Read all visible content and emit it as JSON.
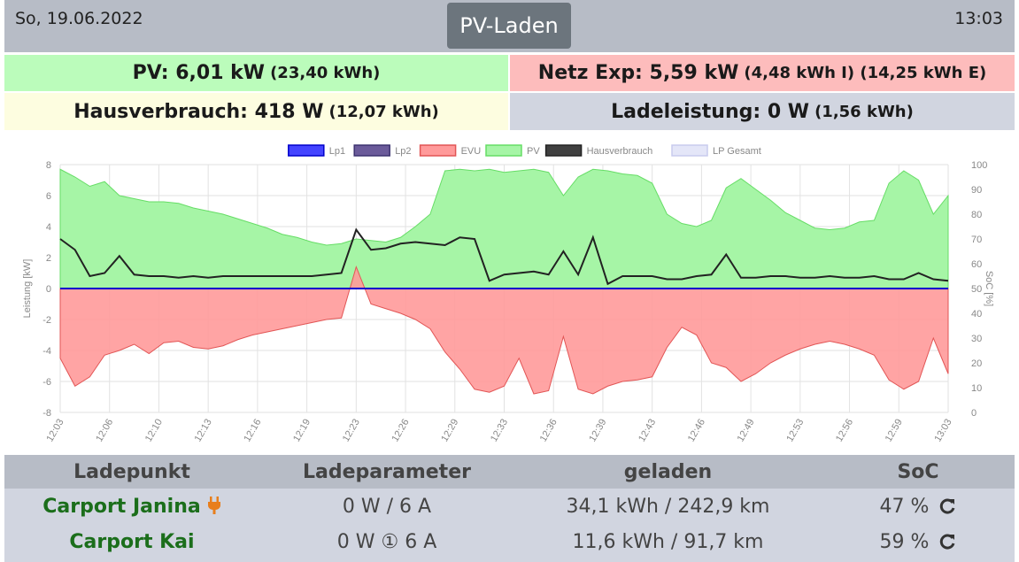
{
  "header": {
    "date": "So, 19.06.2022",
    "title": "PV-Laden",
    "time": "13:03"
  },
  "tiles": {
    "pv": {
      "label": "PV: 6,01 kW",
      "detail": "(23,40 kWh)"
    },
    "netz": {
      "label": "Netz Exp: 5,59 kW",
      "detail": "(4,48 kWh I) (14,25 kWh E)"
    },
    "haus": {
      "label": "Hausverbrauch: 418 W",
      "detail": "(12,07 kWh)"
    },
    "lade": {
      "label": "Ladeleistung: 0 W",
      "detail": "(1,56 kWh)"
    }
  },
  "chart_data": {
    "type": "area",
    "legend": [
      {
        "name": "Lp1",
        "color": "#4444ff",
        "border": "#0000cc"
      },
      {
        "name": "Lp2",
        "color": "#6b5b9a",
        "border": "#3d3370"
      },
      {
        "name": "EVU",
        "color": "#ff9a9a",
        "border": "#e25555"
      },
      {
        "name": "PV",
        "color": "#a6f5a6",
        "border": "#66dd66"
      },
      {
        "name": "Hausverbrauch",
        "color": "#404040",
        "border": "#222222"
      },
      {
        "name": "LP Gesamt",
        "color": "#e4e6f8",
        "border": "#c8cbee"
      }
    ],
    "ylabel": "Leistung [kW]",
    "y2label": "SoC [%]",
    "ylim": [
      -8,
      8
    ],
    "y2lim": [
      0,
      100
    ],
    "yticks": [
      "8",
      "6",
      "4",
      "2",
      "0",
      "-2",
      "-4",
      "-6",
      "-8"
    ],
    "y2ticks": [
      "100",
      "90",
      "80",
      "70",
      "60",
      "50",
      "40",
      "30",
      "20",
      "10",
      "0"
    ],
    "xticks": [
      "12:03",
      "12:06",
      "12:10",
      "12:13",
      "12:16",
      "12:19",
      "12:23",
      "12:26",
      "12:29",
      "12:33",
      "12:36",
      "12:39",
      "12:43",
      "12:46",
      "12:49",
      "12:53",
      "12:56",
      "12:59",
      "13:03"
    ],
    "x": [
      0,
      1,
      2,
      3,
      4,
      5,
      6,
      7,
      8,
      9,
      10,
      11,
      12,
      13,
      14,
      15,
      16,
      17,
      18,
      19,
      20,
      21,
      22,
      23,
      24,
      25,
      26,
      27,
      28,
      29,
      30,
      31,
      32,
      33,
      34,
      35,
      36,
      37,
      38,
      39,
      40,
      41,
      42,
      43,
      44,
      45,
      46,
      47,
      48,
      49,
      50,
      51,
      52,
      53,
      54,
      55,
      56,
      57,
      58,
      59,
      60
    ],
    "series": [
      {
        "name": "PV",
        "values": [
          7.7,
          7.2,
          6.6,
          6.9,
          6.0,
          5.8,
          5.6,
          5.6,
          5.5,
          5.2,
          5.0,
          4.8,
          4.5,
          4.2,
          3.9,
          3.5,
          3.3,
          3.0,
          2.8,
          2.9,
          3.2,
          3.1,
          3.0,
          3.3,
          4.0,
          4.8,
          7.6,
          7.7,
          7.6,
          7.7,
          7.5,
          7.6,
          7.7,
          7.5,
          6.0,
          7.2,
          7.7,
          7.6,
          7.4,
          7.3,
          6.8,
          4.8,
          4.2,
          4.0,
          4.4,
          6.5,
          7.1,
          6.4,
          5.7,
          4.9,
          4.4,
          3.9,
          3.8,
          3.9,
          4.3,
          4.4,
          6.8,
          7.6,
          7.0,
          4.8,
          6.0
        ]
      },
      {
        "name": "EVU",
        "values": [
          -4.5,
          -6.3,
          -5.7,
          -4.3,
          -4.0,
          -3.6,
          -4.2,
          -3.5,
          -3.4,
          -3.8,
          -3.9,
          -3.7,
          -3.3,
          -3.0,
          -2.8,
          -2.6,
          -2.4,
          -2.2,
          -2.0,
          -1.9,
          1.4,
          -1.0,
          -1.3,
          -1.6,
          -2.0,
          -2.6,
          -4.1,
          -5.2,
          -6.5,
          -6.7,
          -6.3,
          -4.5,
          -6.8,
          -6.6,
          -3.1,
          -6.5,
          -6.8,
          -6.3,
          -6.0,
          -5.9,
          -5.7,
          -3.8,
          -2.5,
          -3.0,
          -4.8,
          -5.1,
          -6.0,
          -5.5,
          -4.8,
          -4.3,
          -3.9,
          -3.6,
          -3.4,
          -3.6,
          -3.9,
          -4.3,
          -5.9,
          -6.5,
          -6.0,
          -3.2,
          -5.5
        ]
      },
      {
        "name": "Hausverbrauch",
        "values": [
          3.2,
          2.5,
          0.8,
          1.0,
          2.1,
          0.9,
          0.8,
          0.8,
          0.7,
          0.8,
          0.7,
          0.8,
          0.8,
          0.8,
          0.8,
          0.8,
          0.8,
          0.8,
          0.9,
          1.0,
          3.8,
          2.5,
          2.6,
          2.9,
          3.0,
          2.9,
          2.8,
          3.3,
          3.2,
          0.5,
          0.9,
          1.0,
          1.1,
          0.9,
          2.4,
          0.9,
          3.3,
          0.3,
          0.8,
          0.8,
          0.8,
          0.6,
          0.6,
          0.8,
          0.9,
          2.2,
          0.7,
          0.7,
          0.8,
          0.8,
          0.7,
          0.7,
          0.8,
          0.7,
          0.7,
          0.8,
          0.6,
          0.6,
          1.0,
          0.6,
          0.5
        ]
      },
      {
        "name": "Lp1",
        "values": [
          0,
          0,
          0,
          0,
          0,
          0,
          0,
          0,
          0,
          0,
          0,
          0,
          0,
          0,
          0,
          0,
          0,
          0,
          0,
          0,
          0,
          0,
          0,
          0,
          0,
          0,
          0,
          0,
          0,
          0,
          0,
          0,
          0,
          0,
          0,
          0,
          0,
          0,
          0,
          0,
          0,
          0,
          0,
          0,
          0,
          0,
          0,
          0,
          0,
          0,
          0,
          0,
          0,
          0,
          0,
          0,
          0,
          0,
          0,
          0,
          0
        ]
      },
      {
        "name": "Lp2",
        "values": [
          0,
          0,
          0,
          0,
          0,
          0,
          0,
          0,
          0,
          0,
          0,
          0,
          0,
          0,
          0,
          0,
          0,
          0,
          0,
          0,
          0,
          0,
          0,
          0,
          0,
          0,
          0,
          0,
          0,
          0,
          0,
          0,
          0,
          0,
          0,
          0,
          0,
          0,
          0,
          0,
          0,
          0,
          0,
          0,
          0,
          0,
          0,
          0,
          0,
          0,
          0,
          0,
          0,
          0,
          0,
          0,
          0,
          0,
          0,
          0,
          0
        ]
      }
    ]
  },
  "table": {
    "headers": [
      "Ladepunkt",
      "Ladeparameter",
      "geladen",
      "SoC"
    ],
    "rows": [
      {
        "name": "Carport Janina",
        "params": "0 W / 6 A",
        "charged": "34,1 kWh / 242,9 km",
        "soc": "47 %",
        "icon": "plug-icon"
      },
      {
        "name": "Carport Kai",
        "params": "0 W ① 6 A",
        "charged": "11,6 kWh / 91,7 km",
        "soc": "59 %",
        "icon": ""
      }
    ]
  }
}
